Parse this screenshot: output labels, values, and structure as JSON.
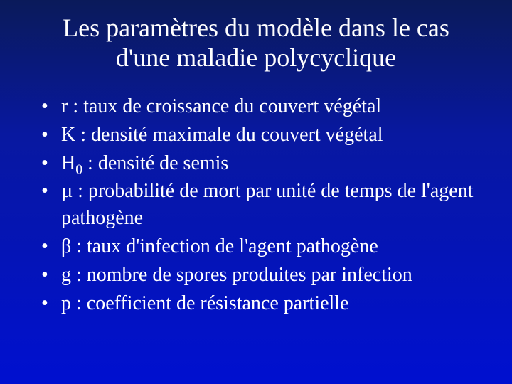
{
  "slide": {
    "background_gradient_top": "#0a1a5a",
    "background_gradient_mid": "#0818a0",
    "background_gradient_bottom": "#0010d0",
    "text_color": "#ffffff",
    "font_family": "Times New Roman",
    "title": "Les paramètres du modèle dans le cas d'une maladie polycyclique",
    "title_fontsize": 36,
    "bullet_fontsize": 28,
    "bullets": [
      {
        "symbol": "r",
        "sub": "",
        "desc": "taux de croissance du couvert végétal"
      },
      {
        "symbol": "K",
        "sub": "",
        "desc": "densité maximale du couvert végétal"
      },
      {
        "symbol": "H",
        "sub": "0",
        "desc": "densité de semis"
      },
      {
        "symbol": "µ",
        "sub": "",
        "desc": "probabilité de mort par unité de temps de l'agent pathogène"
      },
      {
        "symbol": "β",
        "sub": "",
        "desc": "taux d'infection de l'agent pathogène"
      },
      {
        "symbol": "g",
        "sub": "",
        "desc": "nombre de spores produites par infection"
      },
      {
        "symbol": "p",
        "sub": "",
        "desc": "coefficient de résistance partielle"
      }
    ]
  }
}
